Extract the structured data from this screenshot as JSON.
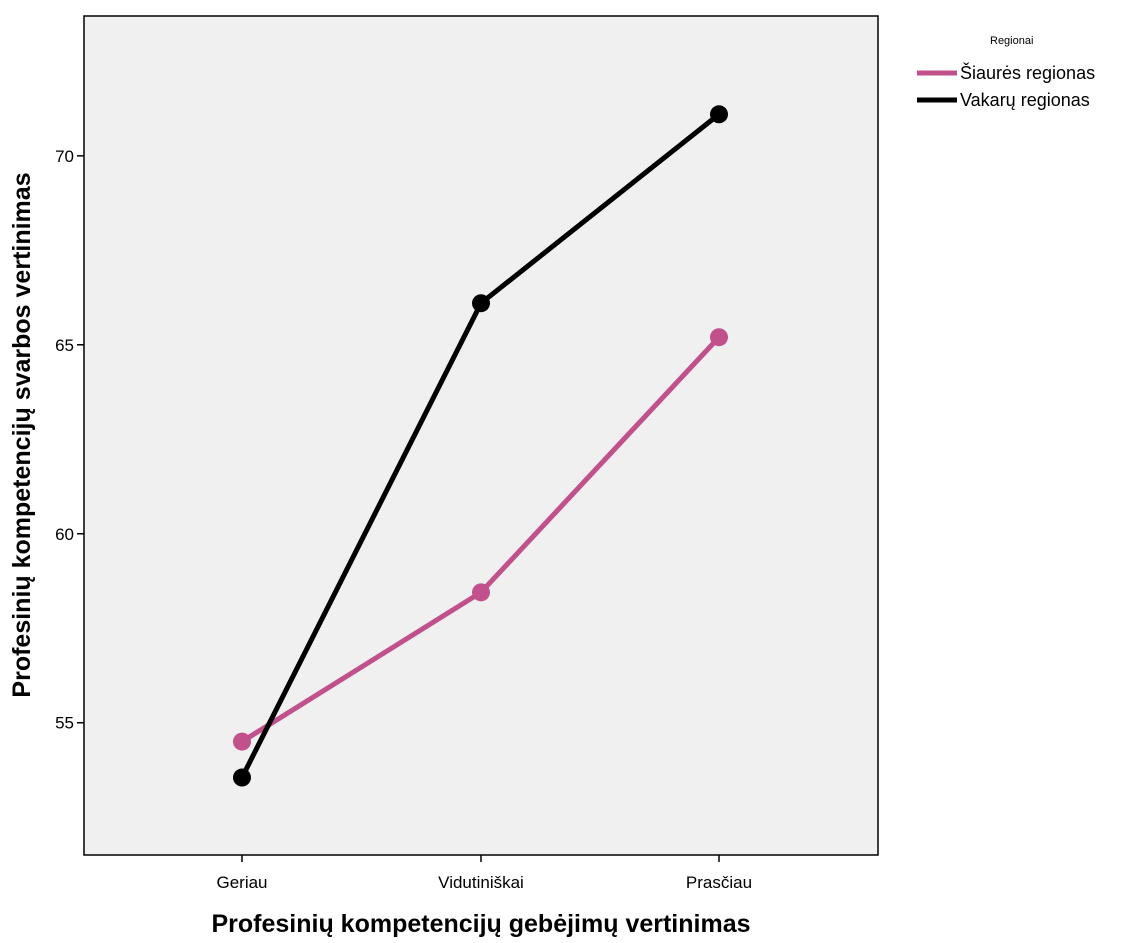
{
  "chart_data": {
    "type": "line",
    "title": "",
    "xlabel": "Profesinių kompetencijų gebėjimų vertinimas",
    "ylabel": "Profesinių kompetencijų svarbos vertinimas",
    "categories": [
      "Geriau",
      "Vidutiniškai",
      "Prasčiau"
    ],
    "ylim": [
      51.5,
      73.7
    ],
    "yticks": [
      55,
      60,
      65,
      70
    ],
    "grid": false,
    "legend_position": "top-right",
    "legend_title": "Regionai",
    "plot_background": "#f0f0f0",
    "series": [
      {
        "name": "Šiaurės regionas",
        "color": "#c2508a",
        "values": [
          54.5,
          58.45,
          65.2
        ]
      },
      {
        "name": "Vakarų regionas",
        "color": "#000000",
        "values": [
          53.55,
          66.1,
          71.1
        ]
      }
    ]
  }
}
